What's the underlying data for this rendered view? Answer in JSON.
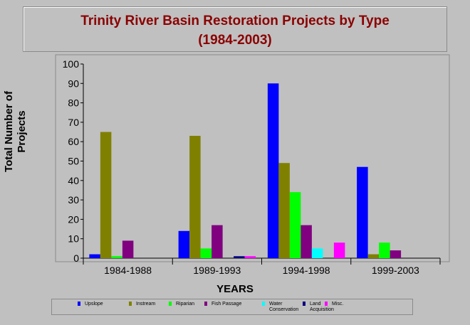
{
  "title": {
    "line1": "Trinity River Basin Restoration Projects by Type",
    "line2": "(1984-2003)"
  },
  "chart_data": {
    "type": "bar",
    "title": "Trinity River Basin Restoration Projects by Type (1984-2003)",
    "xlabel": "YEARS",
    "ylabel_lines": [
      "Total Number of",
      "Projects"
    ],
    "ylim": [
      0,
      100
    ],
    "yticks": [
      0,
      10,
      20,
      30,
      40,
      50,
      60,
      70,
      80,
      90,
      100
    ],
    "grid": false,
    "legend_position": "bottom",
    "categories": [
      "1984-1988",
      "1989-1993",
      "1994-1998",
      "1999-2003"
    ],
    "series": [
      {
        "name": "Upslope",
        "legend_lines": [
          "Upslope"
        ],
        "color": "#0000ff",
        "values": [
          2,
          14,
          90,
          47
        ]
      },
      {
        "name": "Instream",
        "legend_lines": [
          "Instream"
        ],
        "color": "#808000",
        "values": [
          65,
          63,
          49,
          2
        ]
      },
      {
        "name": "Riparian",
        "legend_lines": [
          "Riparian"
        ],
        "color": "#00ff00",
        "values": [
          1,
          5,
          34,
          8
        ]
      },
      {
        "name": "Fish Passage",
        "legend_lines": [
          "Fish Passage"
        ],
        "color": "#800080",
        "values": [
          9,
          17,
          17,
          4
        ]
      },
      {
        "name": "Water Conservation",
        "legend_lines": [
          "Water",
          "Conservation"
        ],
        "color": "#00ffff",
        "values": [
          0,
          0,
          5,
          0
        ]
      },
      {
        "name": "Land Acquisition",
        "legend_lines": [
          "Land",
          "Acquisition"
        ],
        "color": "#000080",
        "values": [
          0,
          1,
          0,
          0
        ]
      },
      {
        "name": "Misc.",
        "legend_lines": [
          "Misc."
        ],
        "color": "#ff00ff",
        "values": [
          0,
          1,
          8,
          0
        ]
      }
    ]
  }
}
